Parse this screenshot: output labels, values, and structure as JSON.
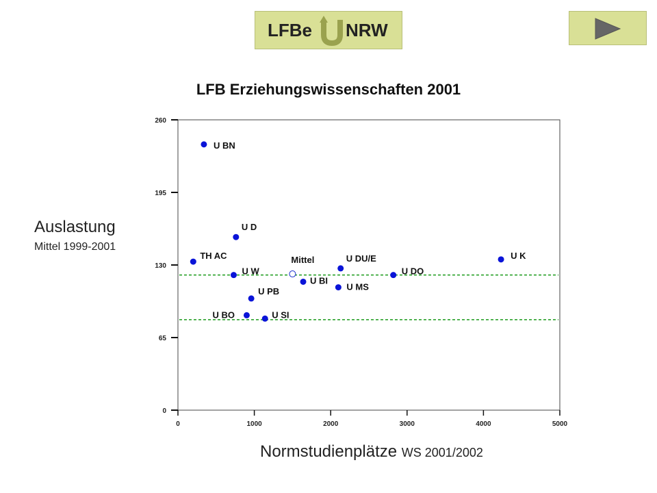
{
  "logo": {
    "text_left": "LFBe",
    "text_right": "NRW",
    "icon": "u-turn-arrow-icon"
  },
  "nav": {
    "icon": "play-right-arrow-icon"
  },
  "chart_data": {
    "type": "scatter",
    "title": "LFB Erziehungswissenschaften  2001",
    "ylabel": "Auslastung",
    "ylabel_sub": "Mittel 1999-2001",
    "xlabel": "Normstudienplätze",
    "xlabel_sub": "WS 2001/2002",
    "xlim": [
      0,
      5000
    ],
    "ylim": [
      0,
      260
    ],
    "xticks": [
      0,
      1000,
      2000,
      3000,
      4000,
      5000
    ],
    "yticks": [
      0,
      65,
      130,
      195,
      260
    ],
    "points": [
      {
        "label": "U BN",
        "x": 340,
        "y": 238
      },
      {
        "label": "U D",
        "x": 760,
        "y": 155
      },
      {
        "label": "TH AC",
        "x": 200,
        "y": 133
      },
      {
        "label": "U W",
        "x": 730,
        "y": 121
      },
      {
        "label": "U PB",
        "x": 960,
        "y": 100
      },
      {
        "label": "U BO",
        "x": 900,
        "y": 85
      },
      {
        "label": "U SI",
        "x": 1140,
        "y": 82
      },
      {
        "label": "U BI",
        "x": 1640,
        "y": 115
      },
      {
        "label": "U DU/E",
        "x": 2130,
        "y": 127
      },
      {
        "label": "U MS",
        "x": 2100,
        "y": 110
      },
      {
        "label": "U DO",
        "x": 2820,
        "y": 121
      },
      {
        "label": "U K",
        "x": 4230,
        "y": 135
      }
    ],
    "mean_point": {
      "label": "Mittel",
      "x": 1500,
      "y": 122
    },
    "reference_lines": [
      121,
      81
    ],
    "colors": {
      "points": "#0a14d8",
      "mean": "#1a2ecc",
      "lines": "#1a9a1a"
    },
    "grid": false
  }
}
